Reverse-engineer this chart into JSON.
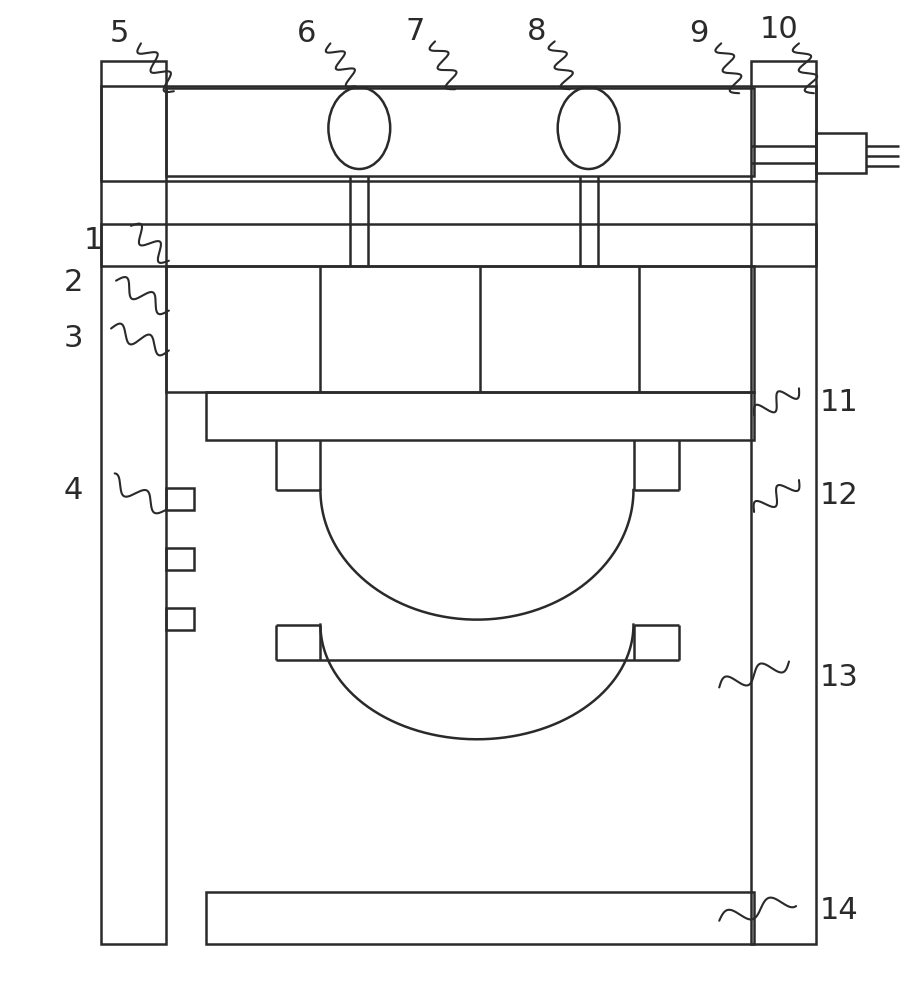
{
  "bg_color": "#ffffff",
  "line_color": "#2a2a2a",
  "line_width": 1.8,
  "fig_width": 9.17,
  "fig_height": 10.0
}
